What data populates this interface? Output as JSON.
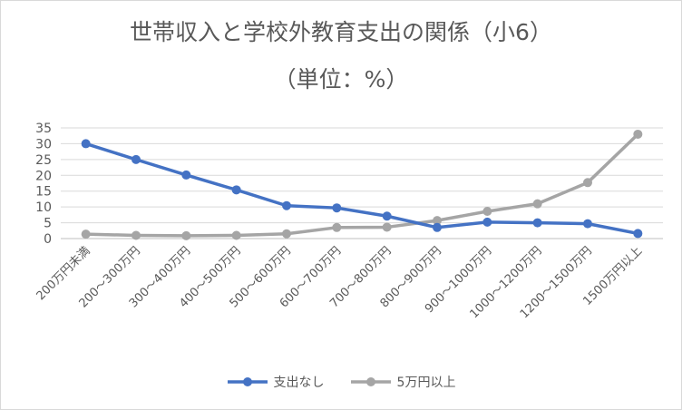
{
  "chart_data": {
    "type": "line",
    "title": "世帯収入と学校外教育支出の関係（小6）",
    "subtitle": "（単位：%）",
    "categories": [
      "200万円未満",
      "200～300万円",
      "300～400万円",
      "400～500万円",
      "500～600万円",
      "600～700万円",
      "700～800万円",
      "800～900万円",
      "900～1000万円",
      "1000～1200万円",
      "1200～1500万円",
      "1500万円以上"
    ],
    "series": [
      {
        "name": "支出なし",
        "color": "#4472c4",
        "values": [
          30,
          25,
          20.1,
          15.4,
          10.4,
          9.7,
          7.1,
          3.5,
          5.2,
          5.0,
          4.7,
          1.6
        ]
      },
      {
        "name": "5万円以上",
        "color": "#a5a5a5",
        "values": [
          1.4,
          1.0,
          0.9,
          1.0,
          1.5,
          3.5,
          3.6,
          5.7,
          8.6,
          11.0,
          17.7,
          33.0
        ]
      }
    ],
    "yticks": [
      "0",
      "5",
      "10",
      "15",
      "20",
      "25",
      "30",
      "35"
    ],
    "ylim": [
      0,
      35
    ],
    "grid": true,
    "legend_position": "bottom"
  }
}
